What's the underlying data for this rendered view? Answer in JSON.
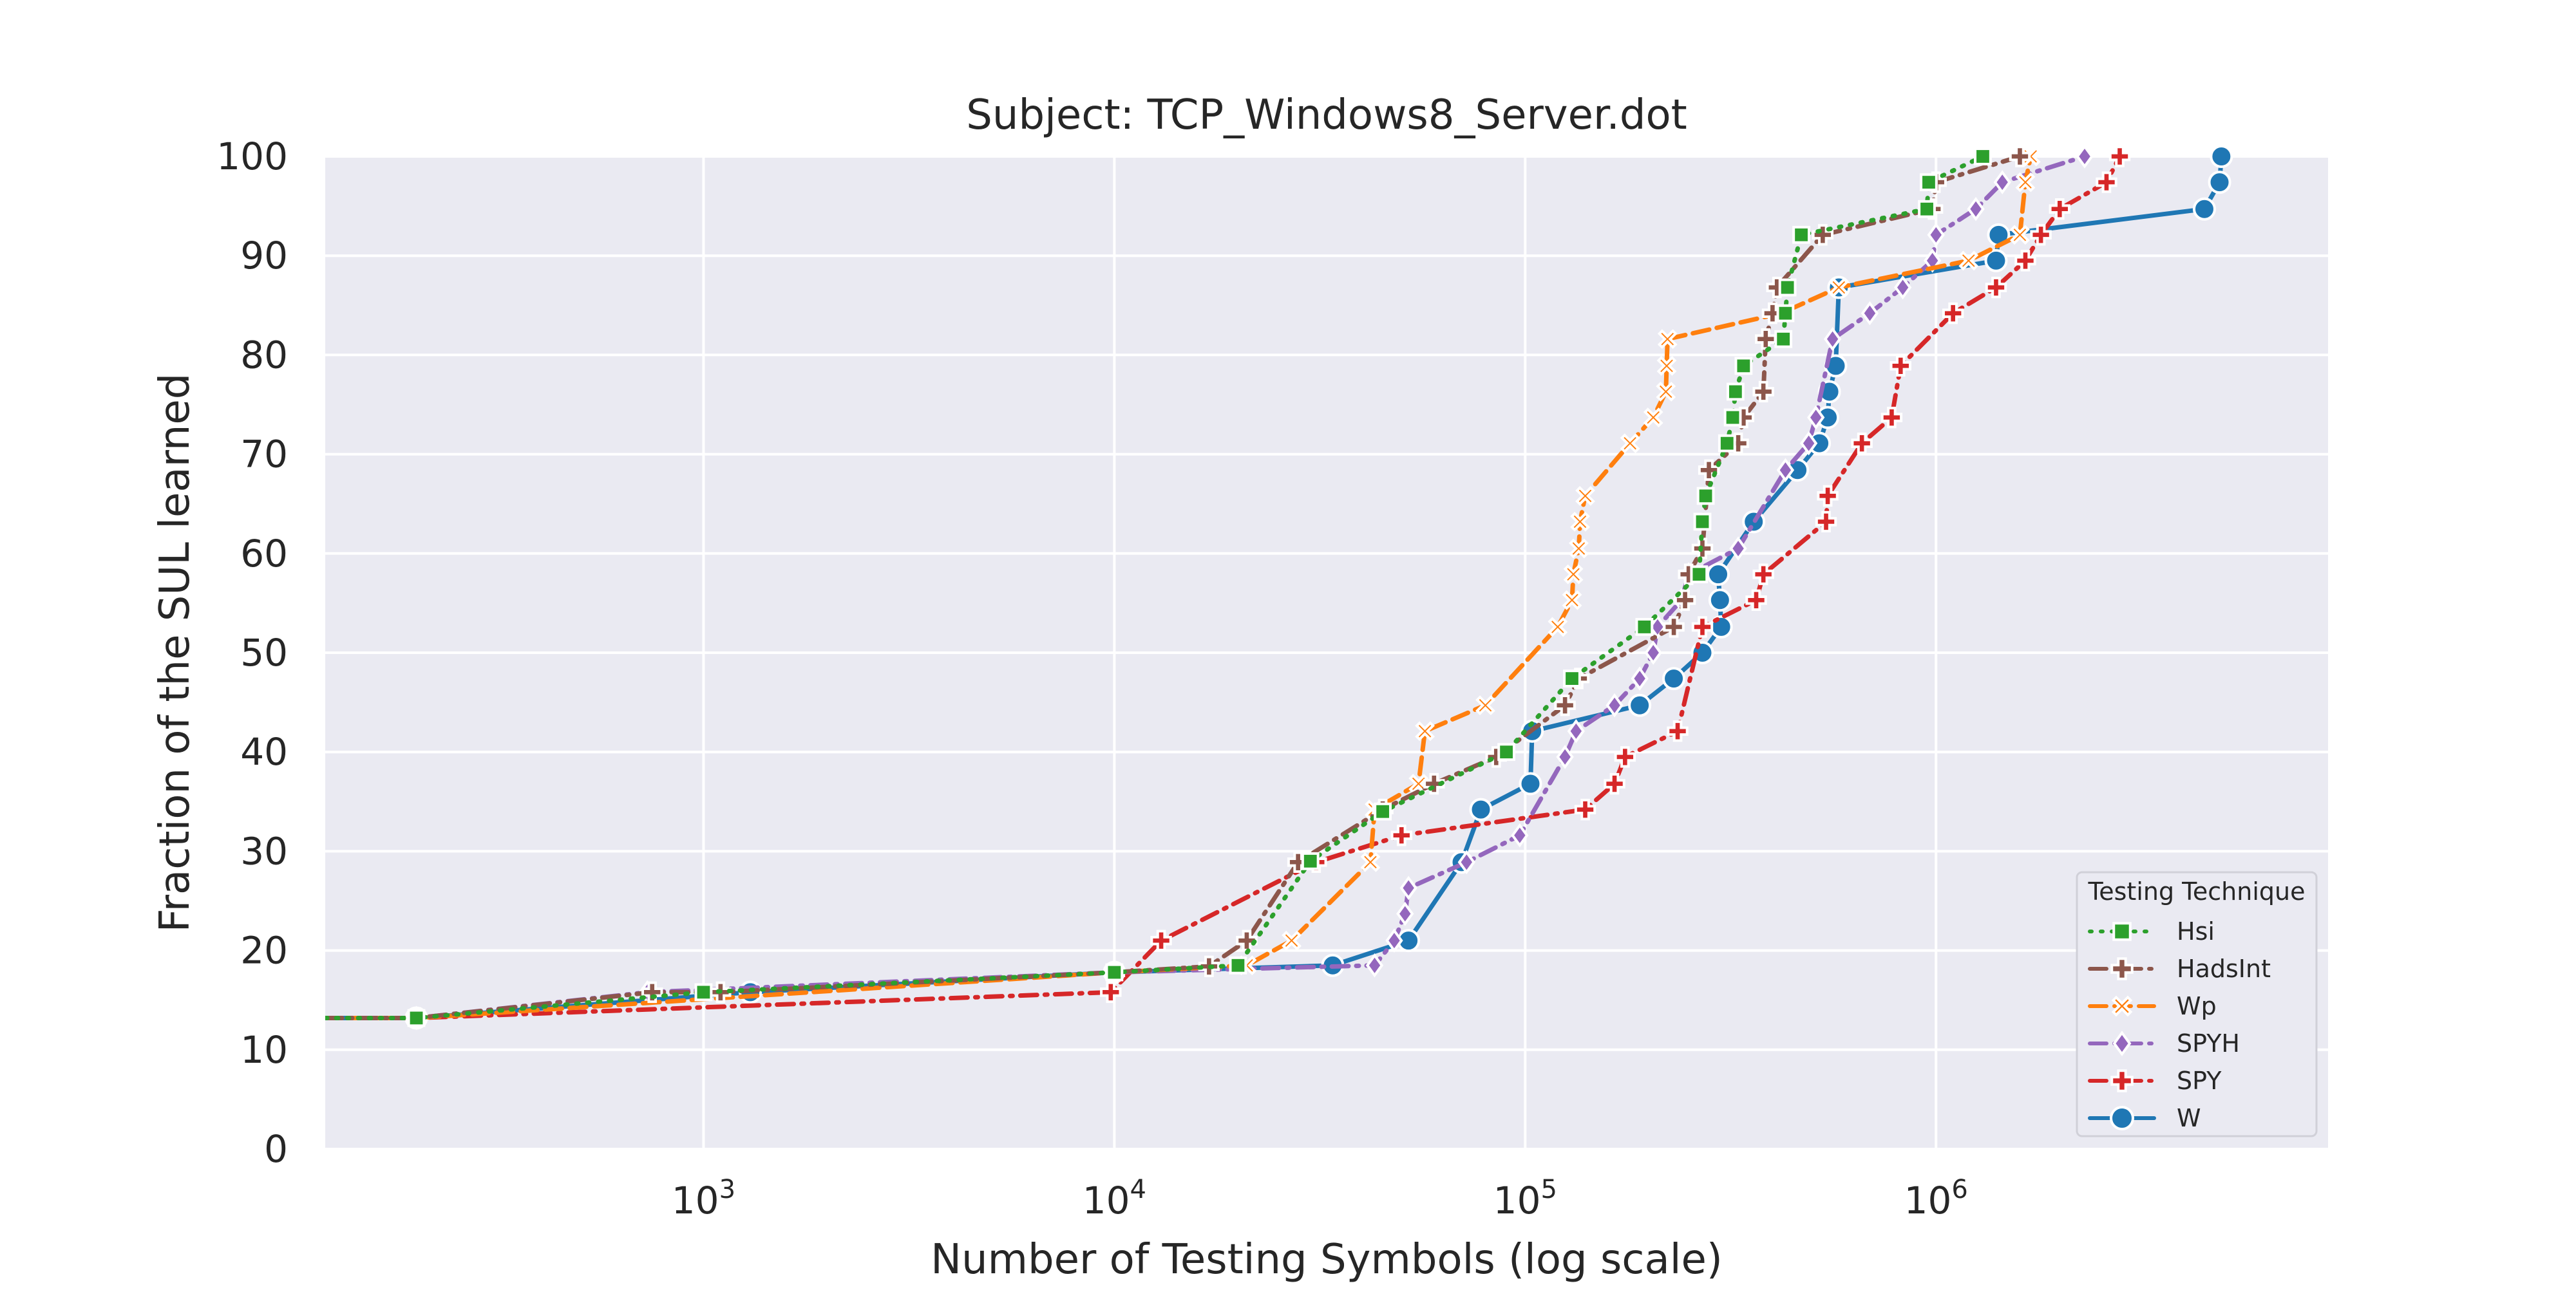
{
  "chart_data": {
    "type": "line",
    "title": "Subject: TCP_Windows8_Server.dot",
    "xlabel": "Number of Testing Symbols (log scale)",
    "ylabel": "Fraction of the SUL learned",
    "xscale": "log",
    "xlim": [
      120,
      9000000
    ],
    "ylim": [
      0,
      100
    ],
    "x_ticks": [
      {
        "value": 1000,
        "base": "10",
        "exp": "3"
      },
      {
        "value": 10000,
        "base": "10",
        "exp": "4"
      },
      {
        "value": 100000,
        "base": "10",
        "exp": "5"
      },
      {
        "value": 1000000,
        "base": "10",
        "exp": "6"
      }
    ],
    "y_ticks": [
      0,
      10,
      20,
      30,
      40,
      50,
      60,
      70,
      80,
      90,
      100
    ],
    "y_tick_labels": [
      "0",
      "10",
      "20",
      "30",
      "40",
      "50",
      "60",
      "70",
      "80",
      "90",
      "100"
    ],
    "grid": true,
    "background_color": "#eaeaf2",
    "grid_color": "#ffffff",
    "legend": {
      "title": "Testing Technique",
      "position": "lower-right"
    },
    "series": [
      {
        "name": "Hsi",
        "color": "#2ca02c",
        "marker": "square",
        "dash": "dotted",
        "points": [
          [
            120,
            13.2
          ],
          [
            200,
            13.2
          ],
          [
            1000,
            15.8
          ],
          [
            10000,
            17.8
          ],
          [
            20000,
            18.5
          ],
          [
            30000,
            29
          ],
          [
            45000,
            34
          ],
          [
            90000,
            40
          ],
          [
            130000,
            47.4
          ],
          [
            195000,
            52.6
          ],
          [
            265000,
            57.9
          ],
          [
            270000,
            63.2
          ],
          [
            275000,
            65.8
          ],
          [
            310000,
            71.1
          ],
          [
            320000,
            73.7
          ],
          [
            325000,
            76.3
          ],
          [
            340000,
            78.9
          ],
          [
            425000,
            81.6
          ],
          [
            430000,
            84.2
          ],
          [
            435000,
            86.8
          ],
          [
            470000,
            92.1
          ],
          [
            950000,
            94.7
          ],
          [
            960000,
            97.4
          ],
          [
            1300000,
            100
          ]
        ]
      },
      {
        "name": "HadsInt",
        "color": "#8c564b",
        "marker": "plus",
        "dash": "dashdot",
        "points": [
          [
            120,
            13.2
          ],
          [
            200,
            13.2
          ],
          [
            750,
            15.8
          ],
          [
            1100,
            15.8
          ],
          [
            10000,
            17.8
          ],
          [
            17000,
            18.4
          ],
          [
            21000,
            21
          ],
          [
            28000,
            28.9
          ],
          [
            45000,
            34.2
          ],
          [
            60000,
            36.8
          ],
          [
            85000,
            39.5
          ],
          [
            125000,
            44.7
          ],
          [
            135000,
            47.4
          ],
          [
            230000,
            52.6
          ],
          [
            245000,
            55.3
          ],
          [
            250000,
            57.9
          ],
          [
            270000,
            60.5
          ],
          [
            280000,
            68.4
          ],
          [
            330000,
            71.1
          ],
          [
            340000,
            73.7
          ],
          [
            380000,
            76.3
          ],
          [
            385000,
            81.6
          ],
          [
            400000,
            84.2
          ],
          [
            410000,
            86.8
          ],
          [
            530000,
            92.1
          ],
          [
            980000,
            94.7
          ],
          [
            1000000,
            97.4
          ],
          [
            1600000,
            100
          ]
        ]
      },
      {
        "name": "Wp",
        "color": "#ff7f0e",
        "marker": "x",
        "dash": "dashed",
        "points": [
          [
            120,
            13.2
          ],
          [
            200,
            13.2
          ],
          [
            10000,
            17.8
          ],
          [
            21000,
            18.5
          ],
          [
            27000,
            21
          ],
          [
            42000,
            28.9
          ],
          [
            43000,
            34.2
          ],
          [
            55000,
            36.8
          ],
          [
            57000,
            42.1
          ],
          [
            80000,
            44.7
          ],
          [
            120000,
            52.6
          ],
          [
            130000,
            55.3
          ],
          [
            131000,
            57.9
          ],
          [
            135000,
            60.5
          ],
          [
            136000,
            63.2
          ],
          [
            140000,
            65.8
          ],
          [
            180000,
            71.1
          ],
          [
            205000,
            73.7
          ],
          [
            220000,
            76.3
          ],
          [
            221000,
            78.9
          ],
          [
            222000,
            81.6
          ],
          [
            420000,
            84.2
          ],
          [
            580000,
            86.8
          ],
          [
            1200000,
            89.5
          ],
          [
            1600000,
            92.1
          ],
          [
            1650000,
            97.4
          ],
          [
            1700000,
            100
          ]
        ]
      },
      {
        "name": "SPYH",
        "color": "#9467bd",
        "marker": "diamond",
        "dash": "dashdot",
        "points": [
          [
            120,
            13.2
          ],
          [
            200,
            13.2
          ],
          [
            730,
            15.8
          ],
          [
            10000,
            17.8
          ],
          [
            43000,
            18.5
          ],
          [
            48000,
            21
          ],
          [
            51000,
            23.7
          ],
          [
            52000,
            26.3
          ],
          [
            72000,
            28.9
          ],
          [
            97000,
            31.6
          ],
          [
            125000,
            39.5
          ],
          [
            133000,
            42.1
          ],
          [
            165000,
            44.7
          ],
          [
            190000,
            47.4
          ],
          [
            205000,
            50
          ],
          [
            210000,
            52.6
          ],
          [
            240000,
            55.3
          ],
          [
            250000,
            57.9
          ],
          [
            330000,
            60.5
          ],
          [
            430000,
            68.4
          ],
          [
            490000,
            71.1
          ],
          [
            510000,
            73.7
          ],
          [
            560000,
            81.6
          ],
          [
            690000,
            84.2
          ],
          [
            830000,
            86.8
          ],
          [
            980000,
            89.5
          ],
          [
            1000000,
            92.1
          ],
          [
            1250000,
            94.7
          ],
          [
            1450000,
            97.4
          ],
          [
            2300000,
            100
          ]
        ]
      },
      {
        "name": "SPY",
        "color": "#d62728",
        "marker": "plus",
        "dash": "dashdot",
        "points": [
          [
            120,
            13.2
          ],
          [
            200,
            13.2
          ],
          [
            9800,
            15.8
          ],
          [
            13000,
            21
          ],
          [
            31000,
            28.9
          ],
          [
            50000,
            31.6
          ],
          [
            140000,
            34.2
          ],
          [
            165000,
            36.8
          ],
          [
            175000,
            39.5
          ],
          [
            235000,
            42.1
          ],
          [
            270000,
            52.6
          ],
          [
            365000,
            55.3
          ],
          [
            380000,
            57.9
          ],
          [
            540000,
            63.2
          ],
          [
            545000,
            65.8
          ],
          [
            660000,
            71.1
          ],
          [
            780000,
            73.7
          ],
          [
            820000,
            78.9
          ],
          [
            1100000,
            84.2
          ],
          [
            1400000,
            86.8
          ],
          [
            1650000,
            89.5
          ],
          [
            1800000,
            92.1
          ],
          [
            2000000,
            94.7
          ],
          [
            2600000,
            97.4
          ],
          [
            2800000,
            100
          ]
        ]
      },
      {
        "name": "W",
        "color": "#1f77b4",
        "marker": "circle",
        "dash": "solid",
        "points": [
          [
            120,
            13.2
          ],
          [
            200,
            13.2
          ],
          [
            1300,
            15.8
          ],
          [
            10000,
            17.8
          ],
          [
            34000,
            18.5
          ],
          [
            52000,
            21
          ],
          [
            70000,
            28.9
          ],
          [
            78000,
            34.2
          ],
          [
            103000,
            36.8
          ],
          [
            104000,
            42.1
          ],
          [
            190000,
            44.7
          ],
          [
            230000,
            47.4
          ],
          [
            270000,
            50
          ],
          [
            300000,
            52.6
          ],
          [
            298000,
            55.3
          ],
          [
            295000,
            57.9
          ],
          [
            360000,
            63.2
          ],
          [
            460000,
            68.4
          ],
          [
            520000,
            71.1
          ],
          [
            545000,
            73.7
          ],
          [
            550000,
            76.3
          ],
          [
            570000,
            78.9
          ],
          [
            580000,
            86.8
          ],
          [
            1400000,
            89.5
          ],
          [
            1420000,
            92.1
          ],
          [
            4500000,
            94.7
          ],
          [
            4900000,
            97.4
          ],
          [
            4950000,
            100
          ]
        ]
      }
    ]
  }
}
